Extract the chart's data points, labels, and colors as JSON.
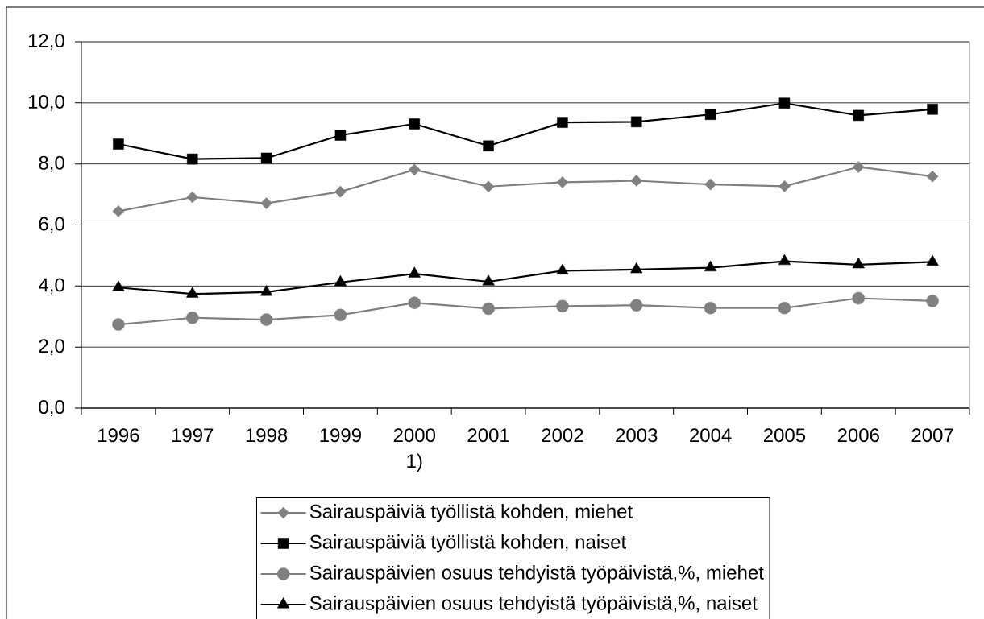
{
  "chart_data": {
    "type": "line",
    "categories": [
      "1996",
      "1997",
      "1998",
      "1999",
      "2000 1)",
      "2001",
      "2002",
      "2003",
      "2004",
      "2005",
      "2006",
      "2007"
    ],
    "series": [
      {
        "name": "Sairauspäiviä työllistä kohden, miehet",
        "color": "#808080",
        "marker": "diamond",
        "values": [
          6.45,
          6.91,
          6.71,
          7.09,
          7.81,
          7.26,
          7.4,
          7.45,
          7.33,
          7.27,
          7.9,
          7.59
        ]
      },
      {
        "name": "Sairauspäiviä työllistä kohden, naiset",
        "color": "#000000",
        "marker": "square",
        "values": [
          8.65,
          8.16,
          8.19,
          8.94,
          9.31,
          8.59,
          9.36,
          9.38,
          9.62,
          9.99,
          9.59,
          9.79
        ]
      },
      {
        "name": "Sairauspäivien osuus tehdyistä työpäivistä,%, miehet",
        "color": "#808080",
        "marker": "circle",
        "values": [
          2.74,
          2.96,
          2.9,
          3.05,
          3.45,
          3.26,
          3.34,
          3.37,
          3.28,
          3.28,
          3.6,
          3.51
        ]
      },
      {
        "name": "Sairauspäivien osuus tehdyistä työpäivistä,%, naiset",
        "color": "#000000",
        "marker": "triangle",
        "values": [
          3.95,
          3.74,
          3.8,
          4.12,
          4.4,
          4.14,
          4.5,
          4.54,
          4.6,
          4.81,
          4.7,
          4.79
        ]
      }
    ],
    "ylim": [
      0,
      12
    ],
    "yticks": [
      {
        "value": 0,
        "label": "0,0"
      },
      {
        "value": 2,
        "label": "2,0"
      },
      {
        "value": 4,
        "label": "4,0"
      },
      {
        "value": 6,
        "label": "6,0"
      },
      {
        "value": 8,
        "label": "8,0"
      },
      {
        "value": 10,
        "label": "10,0"
      },
      {
        "value": 12,
        "label": "12,0"
      }
    ],
    "grid": "y",
    "legend": "bottom",
    "line_style": "solid"
  }
}
